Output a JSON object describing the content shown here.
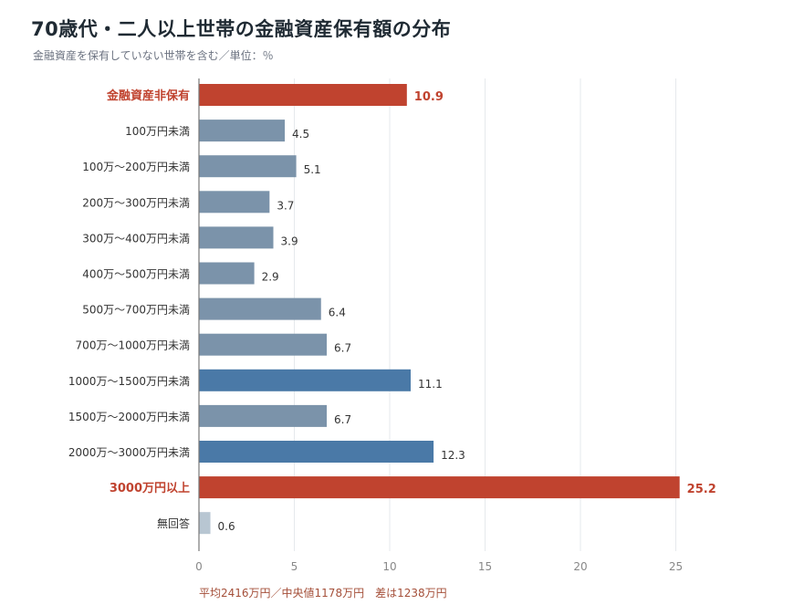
{
  "title": "70歳代・二人以上世帯の金融資産保有額の分布",
  "subtitle": "金融資産を保有していない世帯を含む／単位：％",
  "footnote": "平均2416万円／中央値1178万円　差は1238万円",
  "colors": {
    "highlight": "#c0432f",
    "grey_blue": "#7b93aa",
    "blue": "#4a79a7",
    "light": "#b8c6d2",
    "axis_text": "#888888",
    "gridline": "#e6e9ec"
  },
  "chart_data": {
    "type": "bar",
    "orientation": "horizontal",
    "title": "70歳代・二人以上世帯の金融資産保有額の分布",
    "subtitle": "金融資産を保有していない世帯を含む／単位：％",
    "categories": [
      "金融資産非保有",
      "100万円未満",
      "100万～200万円未満",
      "200万～300万円未満",
      "300万～400万円未満",
      "400万～500万円未満",
      "500万～700万円未満",
      "700万～1000万円未満",
      "1000万～1500万円未満",
      "1500万～2000万円未満",
      "2000万～3000万円未満",
      "3000万円以上",
      "無回答"
    ],
    "values": [
      10.9,
      4.5,
      5.1,
      3.7,
      3.9,
      2.9,
      6.4,
      6.7,
      11.1,
      6.7,
      12.3,
      25.2,
      0.6
    ],
    "value_labels": [
      "10.9",
      "4.5",
      "5.1",
      "3.7",
      "3.9",
      "2.9",
      "6.4",
      "6.7",
      "11.1",
      "6.7",
      "12.3",
      "25.2",
      "0.6"
    ],
    "bar_styles": [
      "highlight",
      "grey_blue",
      "grey_blue",
      "grey_blue",
      "grey_blue",
      "grey_blue",
      "grey_blue",
      "grey_blue",
      "blue",
      "grey_blue",
      "blue",
      "highlight",
      "light"
    ],
    "emphasized": [
      true,
      false,
      false,
      false,
      false,
      false,
      false,
      false,
      false,
      false,
      false,
      true,
      false
    ],
    "xlim": [
      0,
      27
    ],
    "xticks": [
      0,
      5,
      10,
      15,
      20,
      25
    ],
    "xtick_labels": [
      "0",
      "5",
      "10",
      "15",
      "20",
      "25"
    ],
    "grid": true,
    "legend": "none"
  }
}
